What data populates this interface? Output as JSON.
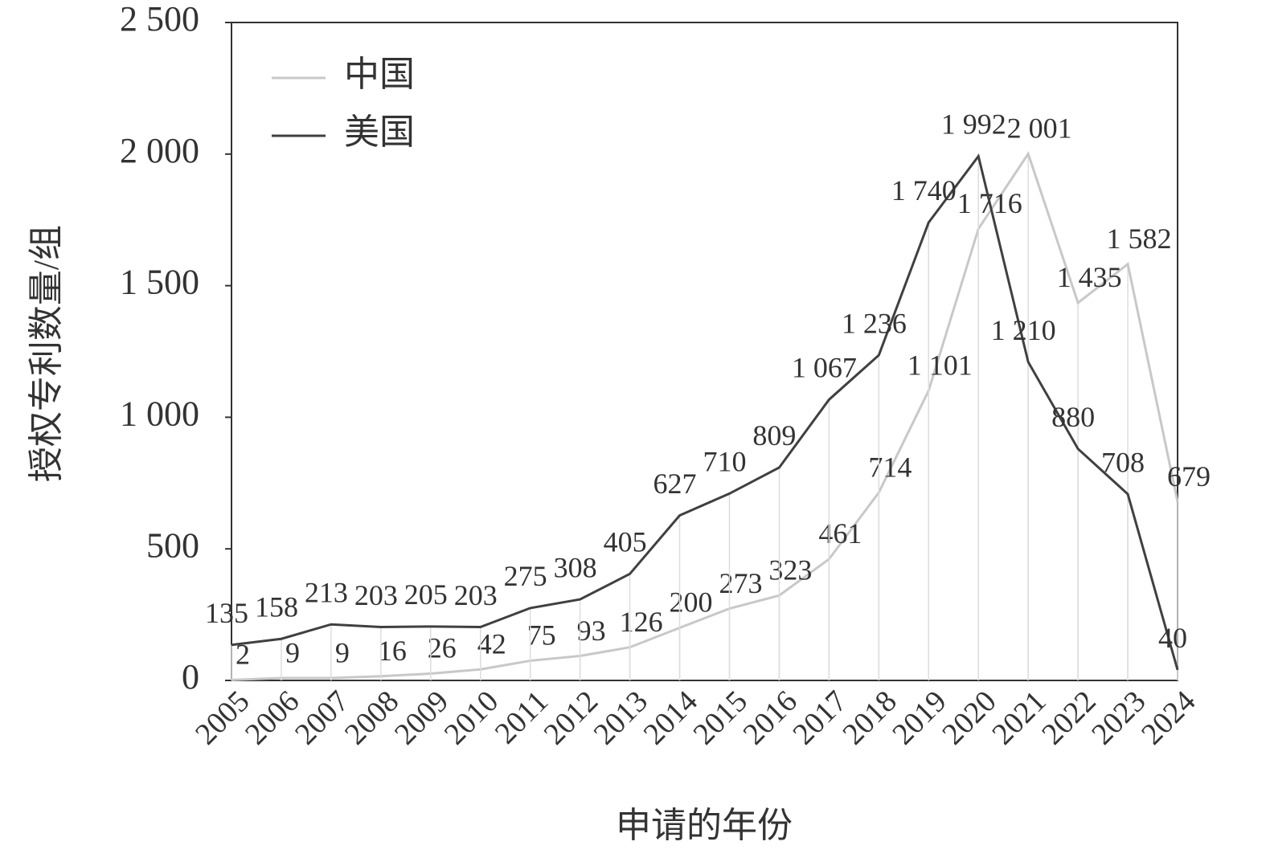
{
  "chart_data": {
    "type": "line",
    "y_label": "授权专利数量/组",
    "x_label": "申请的年份",
    "categories": [
      "2005",
      "2006",
      "2007",
      "2008",
      "2009",
      "2010",
      "2011",
      "2012",
      "2013",
      "2014",
      "2015",
      "2016",
      "2017",
      "2018",
      "2019",
      "2020",
      "2021",
      "2022",
      "2023",
      "2024"
    ],
    "series": [
      {
        "name": "中国",
        "color": "#c8c8c8",
        "values": [
          2,
          9,
          9,
          16,
          26,
          42,
          75,
          93,
          126,
          200,
          273,
          323,
          461,
          714,
          1101,
          1716,
          2001,
          1435,
          1582,
          679
        ],
        "value_labels": [
          "2",
          "9",
          "9",
          "16",
          "26",
          "42",
          "75",
          "93",
          "126",
          "200",
          "273",
          "323",
          "461",
          "714",
          "1 101",
          "1 716",
          "2 001",
          "1 435",
          "1 582",
          "679"
        ]
      },
      {
        "name": "美国",
        "color": "#404040",
        "values": [
          135,
          158,
          213,
          203,
          205,
          203,
          275,
          308,
          405,
          627,
          710,
          809,
          1067,
          1236,
          1740,
          1992,
          1210,
          880,
          708,
          40
        ],
        "value_labels": [
          "135",
          "158",
          "213",
          "203",
          "205",
          "203",
          "275",
          "308",
          "405",
          "627",
          "710",
          "809",
          "1 067",
          "1 236",
          "1 740",
          "1 992",
          "1 210",
          "880",
          "708",
          "40"
        ]
      }
    ],
    "ylim": [
      0,
      2500
    ],
    "yticks": [
      0,
      500,
      {
        "value": 1000,
        "label": "1 000"
      },
      {
        "value": 1500,
        "label": "1 500"
      },
      {
        "value": 2000,
        "label": "2 000"
      },
      {
        "value": 2500,
        "label": "2 500"
      }
    ],
    "legend": "upper left"
  }
}
